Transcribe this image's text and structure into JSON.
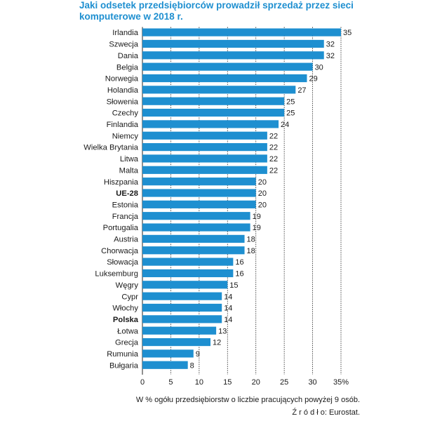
{
  "title": "Jaki odsetek przedsiębiorców prowadził sprzedaż przez sieci komputerowe w 2018 r.",
  "note": "W % ogółu przedsiębiorstw o liczbie pracujących powyżej 9 osób.",
  "source": "Ź r ó d ł o: Eurostat.",
  "colors": {
    "bar": "#1e8fd0",
    "title": "#1e8fd0",
    "grid": "#222222"
  },
  "chart_data": {
    "type": "bar",
    "orientation": "horizontal",
    "categories": [
      "Irlandia",
      "Szwecja",
      "Dania",
      "Belgia",
      "Norwegia",
      "Holandia",
      "Słowenia",
      "Czechy",
      "Finlandia",
      "Niemcy",
      "Wielka Brytania",
      "Litwa",
      "Malta",
      "Hiszpania",
      "UE-28",
      "Estonia",
      "Francja",
      "Portugalia",
      "Austria",
      "Chorwacja",
      "Słowacja",
      "Luksemburg",
      "Węgry",
      "Cypr",
      "Włochy",
      "Polska",
      "Łotwa",
      "Grecja",
      "Rumunia",
      "Bułgaria"
    ],
    "values": [
      35,
      32,
      32,
      30,
      29,
      27,
      25,
      25,
      24,
      22,
      22,
      22,
      22,
      20,
      20,
      20,
      19,
      19,
      18,
      18,
      16,
      16,
      15,
      14,
      14,
      14,
      13,
      12,
      9,
      8
    ],
    "bold_categories": [
      "UE-28",
      "Polska"
    ],
    "x_ticks": [
      "0",
      "5",
      "10",
      "15",
      "20",
      "25",
      "30",
      "35%"
    ],
    "xlim": [
      0,
      35
    ],
    "grid": "vertical dashed"
  }
}
